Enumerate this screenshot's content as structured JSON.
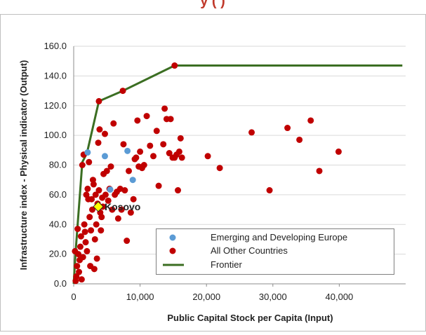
{
  "page": {
    "title_fragment": "y             (           )",
    "title_color": "#c0392b"
  },
  "chart_data": {
    "type": "scatter",
    "title": "",
    "xlabel": "Public Capital Stock per Capita (Input)",
    "ylabel": "Infrastructure index - Physical indicator (Output)",
    "xlim": [
      0,
      50000
    ],
    "ylim": [
      0,
      160
    ],
    "x_ticks": [
      0,
      10000,
      20000,
      30000,
      40000
    ],
    "x_tick_labels": [
      "0",
      "10,000",
      "20,000",
      "30,000",
      "40,000"
    ],
    "y_ticks": [
      0,
      20,
      40,
      60,
      80,
      100,
      120,
      140,
      160
    ],
    "y_tick_labels": [
      "0.0",
      "20.0",
      "40.0",
      "60.0",
      "80.0",
      "100.0",
      "120.0",
      "140.0",
      "160.0"
    ],
    "grid": "horizontal",
    "legend": {
      "position": "bottom-right"
    },
    "colors": {
      "emerging": "#5b9bd5",
      "others": "#c00000",
      "frontier": "#3b6e22",
      "kosovo": "#ffff00"
    },
    "series": [
      {
        "name": "Emerging and Developing Europe",
        "kind": "scatter",
        "points": [
          [
            2100,
            88.5
          ],
          [
            4700,
            86
          ],
          [
            8100,
            89.5
          ],
          [
            8900,
            70
          ],
          [
            5500,
            63.5
          ]
        ]
      },
      {
        "name": "All Other Countries",
        "kind": "scatter",
        "points": [
          [
            200,
            22
          ],
          [
            300,
            2
          ],
          [
            400,
            5
          ],
          [
            500,
            12
          ],
          [
            600,
            37
          ],
          [
            700,
            20
          ],
          [
            800,
            8
          ],
          [
            900,
            16
          ],
          [
            1000,
            25
          ],
          [
            1100,
            32
          ],
          [
            1200,
            3
          ],
          [
            1300,
            80
          ],
          [
            1400,
            18
          ],
          [
            1500,
            87
          ],
          [
            1600,
            40
          ],
          [
            1700,
            35
          ],
          [
            1800,
            28
          ],
          [
            1900,
            60
          ],
          [
            2000,
            22
          ],
          [
            2100,
            64
          ],
          [
            2200,
            57
          ],
          [
            2300,
            82
          ],
          [
            2400,
            45
          ],
          [
            2500,
            12
          ],
          [
            2600,
            36
          ],
          [
            2700,
            57
          ],
          [
            2800,
            50
          ],
          [
            2900,
            70
          ],
          [
            3000,
            67
          ],
          [
            3100,
            10
          ],
          [
            3200,
            30
          ],
          [
            3300,
            60
          ],
          [
            3400,
            40
          ],
          [
            3500,
            17
          ],
          [
            3600,
            54
          ],
          [
            3700,
            95
          ],
          [
            3800,
            63
          ],
          [
            3900,
            104
          ],
          [
            4000,
            48
          ],
          [
            4100,
            36
          ],
          [
            4200,
            45
          ],
          [
            4300,
            58
          ],
          [
            4400,
            52
          ],
          [
            4500,
            74
          ],
          [
            4700,
            101
          ],
          [
            4800,
            60
          ],
          [
            5000,
            76
          ],
          [
            5200,
            56
          ],
          [
            5400,
            64
          ],
          [
            5600,
            79
          ],
          [
            5800,
            50
          ],
          [
            6000,
            108
          ],
          [
            6200,
            60
          ],
          [
            6500,
            62
          ],
          [
            6700,
            44
          ],
          [
            7000,
            64
          ],
          [
            7200,
            50
          ],
          [
            7500,
            94
          ],
          [
            7700,
            63
          ],
          [
            8000,
            29
          ],
          [
            8300,
            76
          ],
          [
            8600,
            48
          ],
          [
            9000,
            57
          ],
          [
            9200,
            84
          ],
          [
            9400,
            85
          ],
          [
            9600,
            110
          ],
          [
            9800,
            79
          ],
          [
            10000,
            89
          ],
          [
            10300,
            78
          ],
          [
            10600,
            80
          ],
          [
            11000,
            113
          ],
          [
            11500,
            93
          ],
          [
            12000,
            86
          ],
          [
            12500,
            103
          ],
          [
            12800,
            66
          ],
          [
            13500,
            94
          ],
          [
            13700,
            118
          ],
          [
            14000,
            111
          ],
          [
            14400,
            88
          ],
          [
            14600,
            111
          ],
          [
            14900,
            85
          ],
          [
            15200,
            85
          ],
          [
            15500,
            87
          ],
          [
            15700,
            63
          ],
          [
            15900,
            89
          ],
          [
            16100,
            98
          ],
          [
            16300,
            85
          ],
          [
            20200,
            86
          ],
          [
            22000,
            78
          ],
          [
            26800,
            102
          ],
          [
            29500,
            63
          ],
          [
            32200,
            105
          ],
          [
            34000,
            97
          ],
          [
            35700,
            110
          ],
          [
            37000,
            76
          ],
          [
            39900,
            89
          ],
          [
            15200,
            147
          ],
          [
            3800,
            123
          ],
          [
            7400,
            130
          ]
        ]
      },
      {
        "name": "Frontier",
        "kind": "line",
        "points": [
          [
            0,
            0
          ],
          [
            300,
            22
          ],
          [
            1300,
            82
          ],
          [
            2000,
            88
          ],
          [
            3800,
            123
          ],
          [
            7400,
            130
          ],
          [
            15200,
            147
          ],
          [
            49500,
            147
          ]
        ]
      }
    ],
    "annotations": [
      {
        "label": "Kosovo",
        "x": 3700,
        "y": 52
      }
    ]
  }
}
